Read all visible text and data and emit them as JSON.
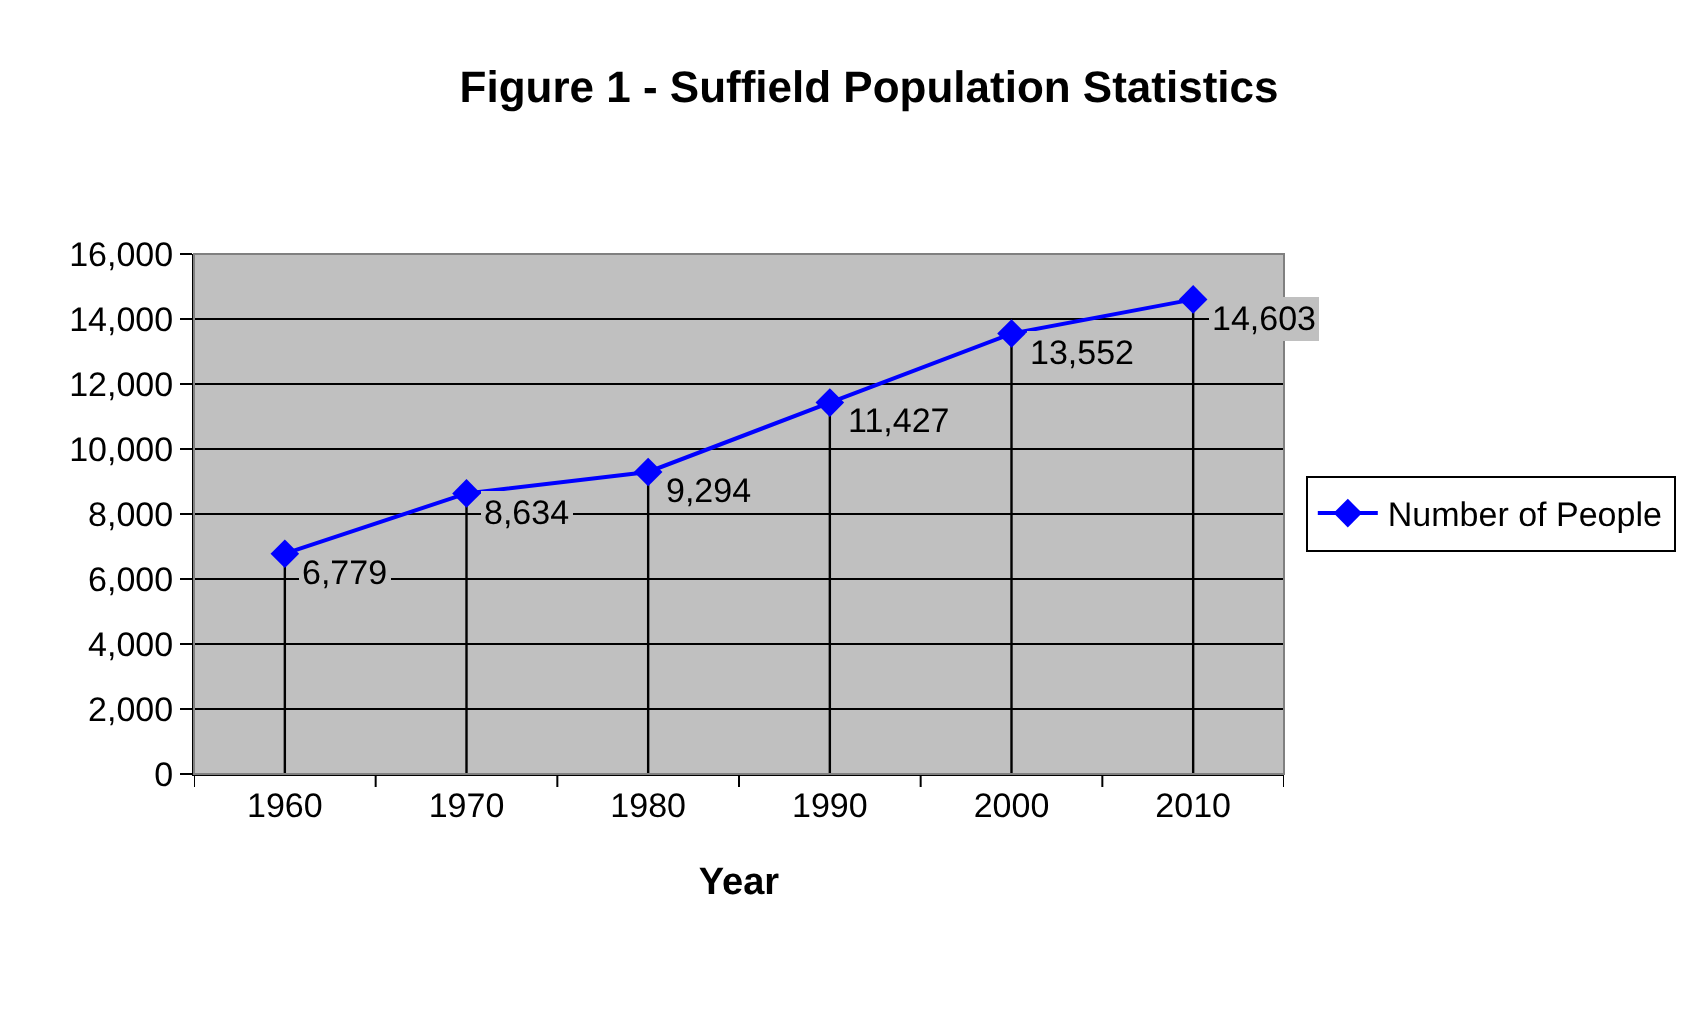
{
  "chart_data": {
    "type": "line",
    "title": "Figure 1 - Suffield Population Statistics",
    "xlabel": "Year",
    "categories": [
      "1960",
      "1970",
      "1980",
      "1990",
      "2000",
      "2010"
    ],
    "series": [
      {
        "name": "Number of People",
        "color": "#0000ff",
        "values": [
          6779,
          8634,
          9294,
          11427,
          13552,
          14603
        ],
        "value_labels": [
          "6,779",
          "8,634",
          "9,294",
          "11,427",
          "13,552",
          "14,603"
        ]
      }
    ],
    "ylim": [
      0,
      16000
    ],
    "yticks": [
      {
        "value": 0,
        "label": "0"
      },
      {
        "value": 2000,
        "label": "2,000"
      },
      {
        "value": 4000,
        "label": "4,000"
      },
      {
        "value": 6000,
        "label": "6,000"
      },
      {
        "value": 8000,
        "label": "8,000"
      },
      {
        "value": 10000,
        "label": "10,000"
      },
      {
        "value": 12000,
        "label": "12,000"
      },
      {
        "value": 14000,
        "label": "14,000"
      },
      {
        "value": 16000,
        "label": "16,000"
      }
    ],
    "grid": true,
    "legend": "right",
    "marker": "diamond",
    "line_style": "solid"
  }
}
